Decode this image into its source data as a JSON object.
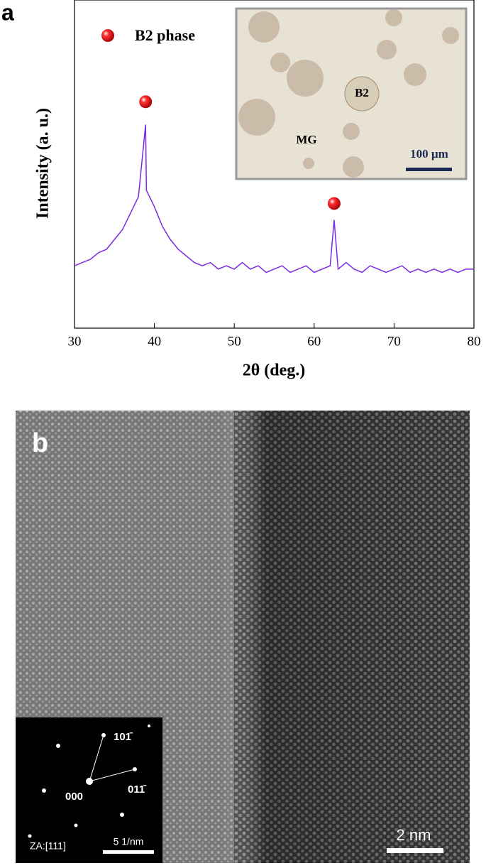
{
  "panel_a": {
    "label": "a",
    "inset": {
      "labels": [
        "B2",
        "MG"
      ],
      "scale_bar": "100 µm"
    }
  },
  "chart_data": {
    "type": "line",
    "x_label": "2θ (deg.)",
    "y_label": "Intensity (a. u.)",
    "xlim": [
      30,
      80
    ],
    "xticks": [
      30,
      40,
      50,
      60,
      70,
      80
    ],
    "ylim": [
      0,
      100
    ],
    "legend": "upper left",
    "series": [
      {
        "color": "#7b2be0",
        "x": [
          30,
          31,
          32,
          33,
          34,
          35,
          36,
          37,
          38,
          38.9,
          39,
          40,
          41,
          42,
          43,
          44,
          45,
          46,
          47,
          48,
          49,
          50,
          51,
          52,
          53,
          54,
          55,
          56,
          57,
          58,
          59,
          60,
          61,
          62,
          62.5,
          63,
          64,
          65,
          66,
          67,
          68,
          69,
          70,
          71,
          72,
          73,
          74,
          75,
          76,
          77,
          78,
          79,
          80
        ],
        "values": [
          19,
          20,
          21,
          23,
          24,
          27,
          30,
          35,
          40,
          62,
          42,
          37,
          31,
          27,
          24,
          22,
          20,
          19,
          20,
          18,
          19,
          18,
          20,
          18,
          19,
          17,
          18,
          19,
          17,
          18,
          19,
          17,
          18,
          19,
          33,
          18,
          20,
          18,
          17,
          19,
          18,
          17,
          18,
          19,
          17,
          18,
          17,
          18,
          17,
          18,
          17,
          18,
          18
        ]
      },
      {
        "name": "B2 phase",
        "type": "scatter",
        "color": "#e00000",
        "x": [
          38.9,
          62.5
        ],
        "values": [
          69,
          38
        ]
      }
    ]
  },
  "panel_b": {
    "label": "b",
    "scale_bar": "2 nm",
    "inset": {
      "spots": [
        "101̄",
        "011̄",
        "000"
      ],
      "zone_axis": "ZA:[111]",
      "scale_bar": "5 1/nm"
    }
  }
}
